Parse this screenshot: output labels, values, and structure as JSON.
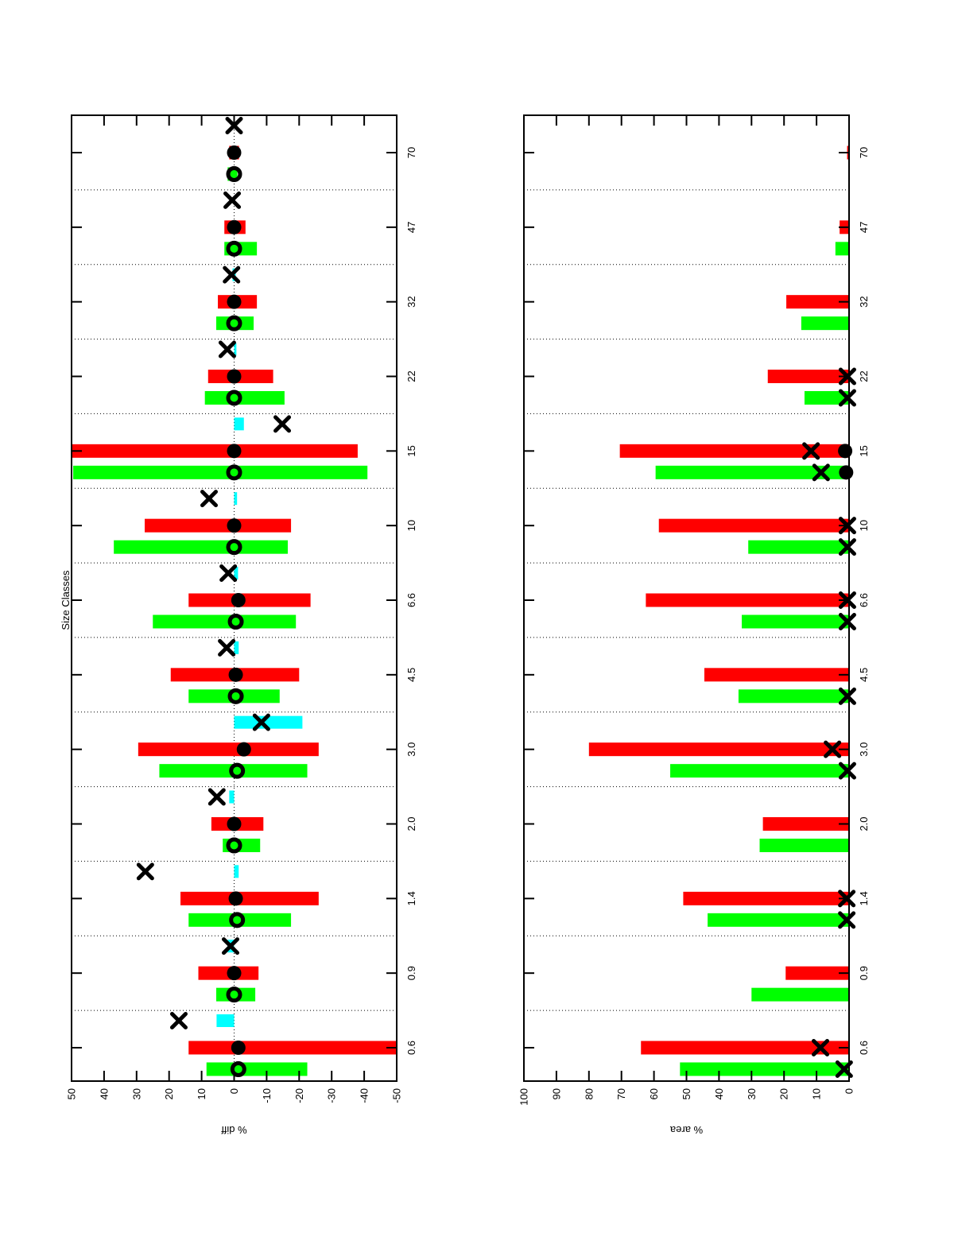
{
  "figure": {
    "title": "Size Classes"
  },
  "chart_data": [
    {
      "type": "bar",
      "id": "diff",
      "title": "Size Classes",
      "xlabel": "",
      "ylabel": "% diff",
      "ylim": [
        -50,
        50
      ],
      "yticks": [
        50,
        40,
        30,
        20,
        10,
        0,
        -10,
        -20,
        -30,
        -40,
        -50
      ],
      "grid": "dotted separators between categories, dotted zero axis",
      "legend": "none",
      "categories": [
        "0.6",
        "0.9",
        "1.4",
        "2.0",
        "3.0",
        "4.5",
        "6.6",
        "10",
        "15",
        "22",
        "32",
        "47",
        "70"
      ],
      "series": [
        {
          "name": "green-range-bars",
          "type": "range-bar",
          "lane": "green",
          "color": "#00ff00",
          "ranges": [
            [
              -22.5,
              8.5
            ],
            [
              -6.5,
              5.5
            ],
            [
              -17.5,
              14
            ],
            [
              -8,
              3.5
            ],
            [
              -22.5,
              23
            ],
            [
              -14,
              14
            ],
            [
              -19,
              25
            ],
            [
              -16.5,
              37
            ],
            [
              -41,
              49.5
            ],
            [
              -15.5,
              9
            ],
            [
              -6,
              5.5
            ],
            [
              -7,
              3
            ],
            [
              -1,
              2
            ]
          ]
        },
        {
          "name": "red-range-bars",
          "type": "range-bar",
          "lane": "red",
          "color": "#ff0000",
          "ranges": [
            [
              -50,
              14
            ],
            [
              -7.5,
              11
            ],
            [
              -26,
              16.5
            ],
            [
              -9,
              7
            ],
            [
              -26,
              29.5
            ],
            [
              -20,
              19.5
            ],
            [
              -23.5,
              14
            ],
            [
              -17.5,
              27.5
            ],
            [
              -38,
              50
            ],
            [
              -12,
              8
            ],
            [
              -7,
              5
            ],
            [
              -3.5,
              3
            ],
            [
              -1.5,
              1.5
            ]
          ]
        },
        {
          "name": "cyan-range-bars",
          "type": "range-bar",
          "lane": "cyan",
          "color": "#00ffff",
          "ranges": [
            [
              0,
              5.4
            ],
            [
              0,
              2
            ],
            [
              -1.4,
              0
            ],
            [
              0,
              1.5
            ],
            [
              -21,
              0
            ],
            [
              -1.4,
              0
            ],
            [
              -1.2,
              0
            ],
            [
              -0.9,
              0
            ],
            [
              -3,
              0
            ],
            [
              -0.7,
              0
            ],
            [
              -0.5,
              0.5
            ],
            null,
            null
          ]
        },
        {
          "name": "open-circle-markers",
          "type": "marker",
          "marker": "circle-open",
          "lane": "green",
          "values": [
            -1.3,
            0,
            -0.9,
            0,
            -0.9,
            -0.5,
            -0.5,
            0,
            0,
            0,
            0,
            0,
            0
          ]
        },
        {
          "name": "filled-circle-markers",
          "type": "marker",
          "marker": "circle-filled",
          "lane": "red",
          "values": [
            -1.3,
            0,
            -0.5,
            0,
            -3,
            -0.5,
            -1.3,
            0,
            0,
            0,
            0,
            0,
            0
          ]
        },
        {
          "name": "cross-markers",
          "type": "marker",
          "marker": "x",
          "lane": "cyan",
          "values": [
            17,
            1.1,
            27.3,
            5.3,
            -8.4,
            2.3,
            1.8,
            7.7,
            -14.8,
            2.1,
            0.8,
            0.6,
            0
          ]
        }
      ]
    },
    {
      "type": "bar",
      "id": "area",
      "title": "",
      "xlabel": "",
      "ylabel": "% area",
      "ylim": [
        0,
        100
      ],
      "yticks": [
        100,
        90,
        80,
        70,
        60,
        50,
        40,
        30,
        20,
        10,
        0
      ],
      "grid": "dotted separators between categories",
      "legend": "none",
      "categories": [
        "0.6",
        "0.9",
        "1.4",
        "2.0",
        "3.0",
        "4.5",
        "6.6",
        "10",
        "15",
        "22",
        "32",
        "47",
        "70"
      ],
      "series": [
        {
          "name": "green-bars",
          "type": "bar",
          "lane": "green",
          "color": "#00ff00",
          "values": [
            52,
            30,
            43.5,
            27.5,
            55,
            34,
            33,
            31,
            59.5,
            13.7,
            14.7,
            4.2,
            null
          ]
        },
        {
          "name": "red-bars",
          "type": "bar",
          "lane": "red",
          "color": "#ff0000",
          "values": [
            64,
            19.5,
            51,
            26.5,
            80,
            44.5,
            62.5,
            58.5,
            70.5,
            25,
            19.3,
            2.9,
            0.6
          ]
        },
        {
          "name": "cross-markers-red-row",
          "type": "marker",
          "marker": "x",
          "lane": "red",
          "values": [
            8.8,
            null,
            0.7,
            null,
            5.1,
            null,
            0.5,
            0.5,
            11.7,
            0.5,
            null,
            null,
            null
          ]
        },
        {
          "name": "cross-markers-green-row",
          "type": "marker",
          "marker": "x",
          "lane": "green",
          "values": [
            1.5,
            null,
            0.7,
            null,
            0.5,
            0.5,
            0.5,
            0.5,
            8.6,
            0.5,
            null,
            null,
            null
          ]
        },
        {
          "name": "filled-circle-markers-red-row",
          "type": "marker",
          "marker": "circle-filled",
          "lane": "red",
          "values": [
            null,
            null,
            null,
            null,
            null,
            null,
            null,
            null,
            1.2,
            null,
            null,
            null,
            null
          ]
        },
        {
          "name": "filled-circle-markers-green-row",
          "type": "marker",
          "marker": "circle-filled",
          "lane": "green",
          "values": [
            null,
            null,
            null,
            null,
            null,
            null,
            null,
            null,
            0.9,
            null,
            null,
            null,
            null
          ]
        }
      ]
    }
  ]
}
